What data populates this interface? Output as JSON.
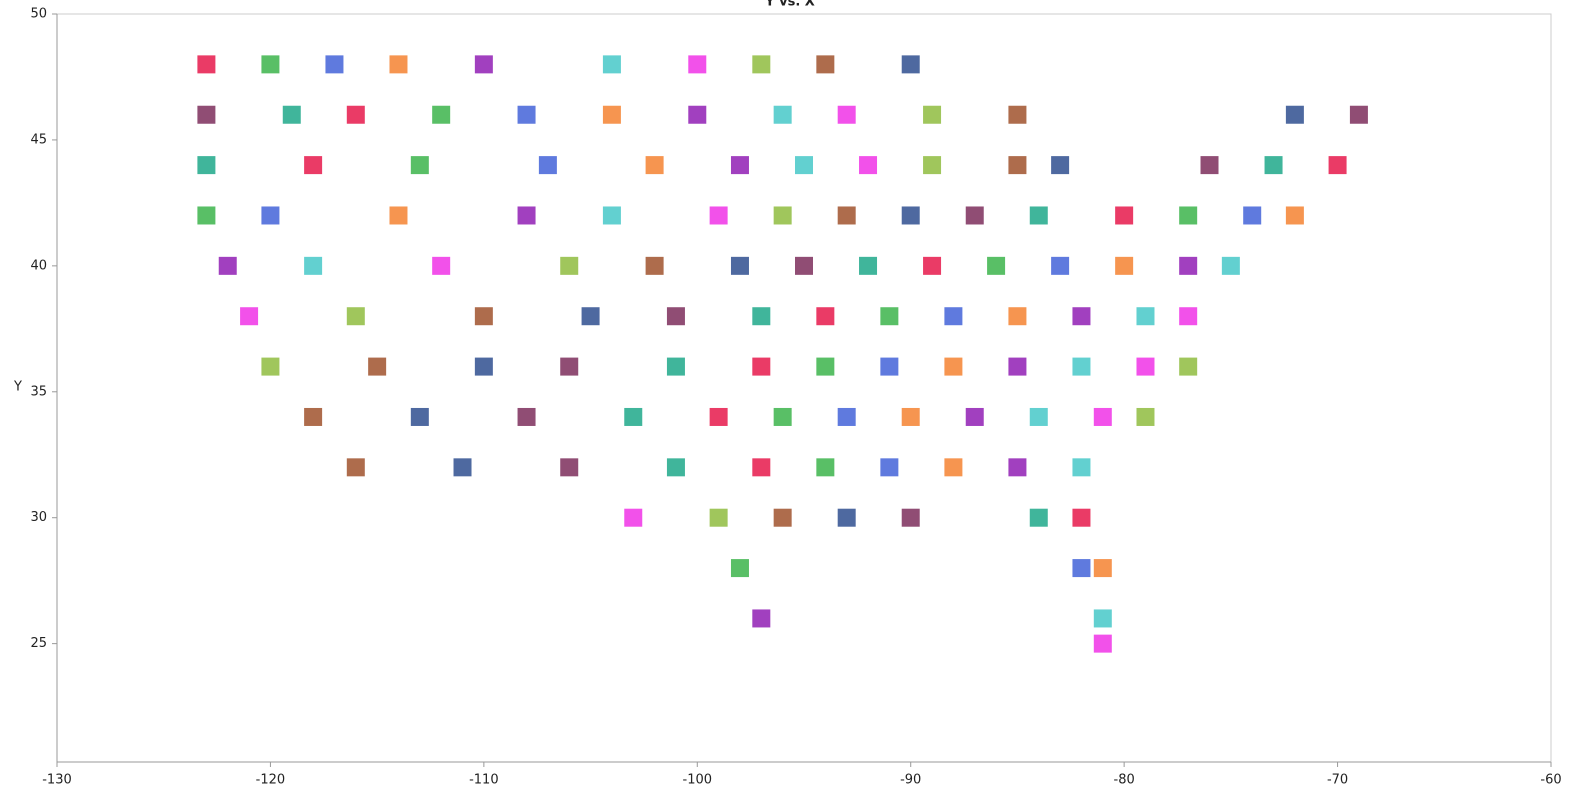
{
  "chart_data": {
    "type": "scatter",
    "title": "Y vs. X",
    "y_label": "Y",
    "xlim": [
      -130,
      -60
    ],
    "ylim": [
      20.3,
      50
    ],
    "xticks": [
      -130,
      -120,
      -110,
      -100,
      -90,
      -80,
      -70,
      -60
    ],
    "yticks": [
      25,
      30,
      35,
      40,
      45,
      50
    ],
    "palette": [
      "#e6194b",
      "#3cb44b",
      "#4363d8",
      "#f58231",
      "#911eb4",
      "#46c8c8",
      "#f032e6",
      "#8fbc3f",
      "#a0522d",
      "#2f4f8f",
      "#7d2e5c",
      "#1fa88a"
    ],
    "x": [
      -123,
      -120,
      -117,
      -114,
      -110,
      -104,
      -100,
      -97,
      -94,
      -90,
      -123,
      -119,
      -116,
      -112,
      -108,
      -104,
      -100,
      -96,
      -93,
      -89,
      -85,
      -72,
      -69,
      -123,
      -118,
      -113,
      -107,
      -102,
      -98,
      -95,
      -92,
      -89,
      -85,
      -83,
      -76,
      -73,
      -70,
      -123,
      -120,
      -114,
      -108,
      -104,
      -99,
      -96,
      -93,
      -90,
      -87,
      -84,
      -80,
      -77,
      -74,
      -72,
      -122,
      -118,
      -112,
      -106,
      -102,
      -98,
      -95,
      -92,
      -89,
      -86,
      -83,
      -80,
      -77,
      -75,
      -121,
      -116,
      -110,
      -105,
      -101,
      -97,
      -94,
      -91,
      -88,
      -85,
      -82,
      -79,
      -77,
      -120,
      -115,
      -110,
      -106,
      -101,
      -97,
      -94,
      -91,
      -88,
      -85,
      -82,
      -79,
      -77,
      -118,
      -113,
      -108,
      -103,
      -99,
      -96,
      -93,
      -90,
      -87,
      -84,
      -81,
      -79,
      -116,
      -111,
      -106,
      -101,
      -97,
      -94,
      -91,
      -88,
      -85,
      -82,
      -103,
      -99,
      -96,
      -93,
      -90,
      -84,
      -82,
      -98,
      -82,
      -81,
      -97,
      -81,
      -81
    ],
    "values": [
      48,
      48,
      48,
      48,
      48,
      48,
      48,
      48,
      48,
      48,
      46,
      46,
      46,
      46,
      46,
      46,
      46,
      46,
      46,
      46,
      46,
      46,
      46,
      44,
      44,
      44,
      44,
      44,
      44,
      44,
      44,
      44,
      44,
      44,
      44,
      44,
      44,
      42,
      42,
      42,
      42,
      42,
      42,
      42,
      42,
      42,
      42,
      42,
      42,
      42,
      42,
      42,
      40,
      40,
      40,
      40,
      40,
      40,
      40,
      40,
      40,
      40,
      40,
      40,
      40,
      40,
      38,
      38,
      38,
      38,
      38,
      38,
      38,
      38,
      38,
      38,
      38,
      38,
      38,
      36,
      36,
      36,
      36,
      36,
      36,
      36,
      36,
      36,
      36,
      36,
      36,
      36,
      34,
      34,
      34,
      34,
      34,
      34,
      34,
      34,
      34,
      34,
      34,
      34,
      32,
      32,
      32,
      32,
      32,
      32,
      32,
      32,
      32,
      32,
      30,
      30,
      30,
      30,
      30,
      30,
      30,
      28,
      28,
      28,
      26,
      26,
      25
    ]
  }
}
